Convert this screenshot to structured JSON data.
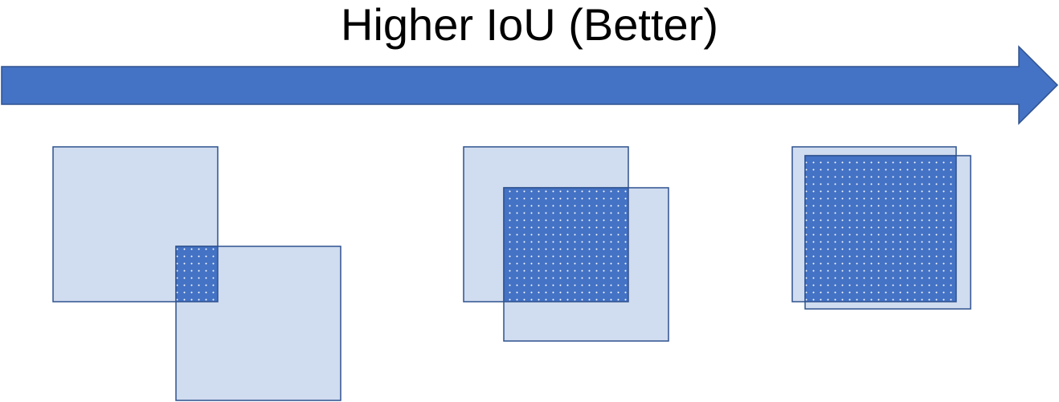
{
  "title": "Higher IoU (Better)",
  "colors": {
    "arrow_fill": "#4472C4",
    "arrow_stroke": "#2F528F",
    "box_fill": "#D0DCEF",
    "box_stroke": "#2F528F",
    "overlap_fill": "#4472C4",
    "dot_color": "#FFFFFF"
  },
  "icons": {
    "arrow": "right-arrow-icon"
  }
}
